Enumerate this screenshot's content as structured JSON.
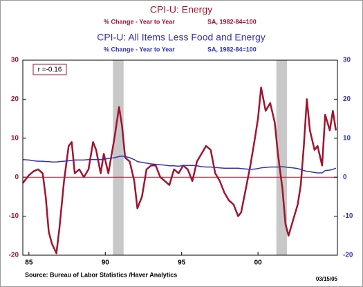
{
  "chart_data": {
    "type": "line",
    "title": "CPI-U: Energy",
    "subtitle": "% Change - Year to Year",
    "subtitle_note": "SA, 1982-84=100",
    "title2": "CPI-U: All Items Less Food and Energy",
    "subtitle2": "% Change - Year to Year",
    "subtitle2_note": "SA, 1982-84=100",
    "annotation": "r =-0.16",
    "source": "Source:  Bureau of Labor Statistics /Haver Analytics",
    "date": "03/15/05",
    "x": [
      1984.6,
      1985.0,
      1985.3,
      1985.6,
      1985.9,
      1986.1,
      1986.3,
      1986.5,
      1986.8,
      1987.0,
      1987.3,
      1987.6,
      1987.8,
      1988.0,
      1988.3,
      1988.6,
      1988.9,
      1989.2,
      1989.4,
      1989.7,
      1989.9,
      1990.2,
      1990.6,
      1990.9,
      1991.1,
      1991.3,
      1991.6,
      1991.9,
      1992.1,
      1992.4,
      1992.7,
      1993.0,
      1993.3,
      1993.6,
      1993.9,
      1994.2,
      1994.5,
      1994.8,
      1995.1,
      1995.4,
      1995.7,
      1996.0,
      1996.3,
      1996.6,
      1996.9,
      1997.2,
      1997.5,
      1997.8,
      1998.1,
      1998.4,
      1998.7,
      1998.9,
      1999.2,
      1999.5,
      1999.8,
      2000.0,
      2000.2,
      2000.5,
      2000.8,
      2001.1,
      2001.3,
      2001.6,
      2001.8,
      2002.0,
      2002.3,
      2002.6,
      2002.8,
      2003.0,
      2003.2,
      2003.4,
      2003.7,
      2003.9,
      2004.2,
      2004.4,
      2004.7,
      2004.9,
      2005.1
    ],
    "series": [
      {
        "name": "CPI-U: Energy",
        "color": "#a0142d",
        "values": [
          -1.5,
          0.5,
          1.5,
          2,
          1,
          -5,
          -14,
          -17,
          -19.5,
          -13,
          -1,
          8,
          9,
          1,
          2,
          0,
          2,
          9,
          7,
          1,
          6,
          1,
          10,
          18,
          13,
          5,
          4,
          -1,
          -8,
          -5,
          2,
          3,
          3,
          0,
          -1,
          -2,
          2,
          1,
          3,
          2,
          -1,
          4,
          6,
          8,
          7,
          1,
          -1,
          -4,
          -6,
          -7,
          -10,
          -9,
          -3,
          3,
          10,
          15,
          23,
          17,
          19,
          14,
          6,
          -3,
          -12,
          -15,
          -11,
          -7,
          -2,
          8,
          20,
          12,
          7,
          8,
          3,
          16,
          12,
          17,
          12
        ]
      },
      {
        "name": "CPI-U: All Items Less Food and Energy",
        "color": "#3232b4",
        "axis": "y2",
        "values": [
          4.5,
          4.4,
          4.2,
          4.1,
          4.1,
          4.0,
          4.0,
          3.9,
          3.9,
          4.0,
          4.1,
          4.2,
          4.3,
          4.4,
          4.4,
          4.4,
          4.5,
          4.5,
          4.5,
          4.5,
          4.6,
          4.8,
          5.0,
          5.3,
          5.4,
          5.3,
          5.0,
          4.5,
          4.0,
          3.8,
          3.6,
          3.4,
          3.3,
          3.2,
          3.1,
          2.9,
          2.9,
          2.8,
          3.0,
          3.0,
          3.0,
          2.9,
          2.7,
          2.6,
          2.6,
          2.5,
          2.4,
          2.3,
          2.3,
          2.3,
          2.3,
          2.2,
          2.1,
          2.0,
          2.1,
          2.2,
          2.4,
          2.5,
          2.6,
          2.6,
          2.6,
          2.7,
          2.6,
          2.5,
          2.4,
          2.2,
          2.0,
          1.7,
          1.5,
          1.4,
          1.2,
          1.1,
          1.1,
          1.7,
          1.8,
          2.0,
          2.3
        ]
      }
    ],
    "xlim": [
      1984.6,
      2005.2
    ],
    "xticks": [
      {
        "value": 1985,
        "label": "85"
      },
      {
        "value": 1990,
        "label": "90"
      },
      {
        "value": 1995,
        "label": "95"
      },
      {
        "value": 2000,
        "label": "00"
      }
    ],
    "ylim": [
      -20,
      30
    ],
    "yticks": [
      -20,
      -10,
      0,
      10,
      20,
      30
    ],
    "y2lim": [
      -20,
      30
    ],
    "y2ticks": [
      -20,
      -10,
      0,
      10,
      20,
      30
    ],
    "shaded_periods": [
      [
        1990.5,
        1991.2
      ],
      [
        2001.2,
        2001.9
      ]
    ],
    "zero_line": true
  }
}
